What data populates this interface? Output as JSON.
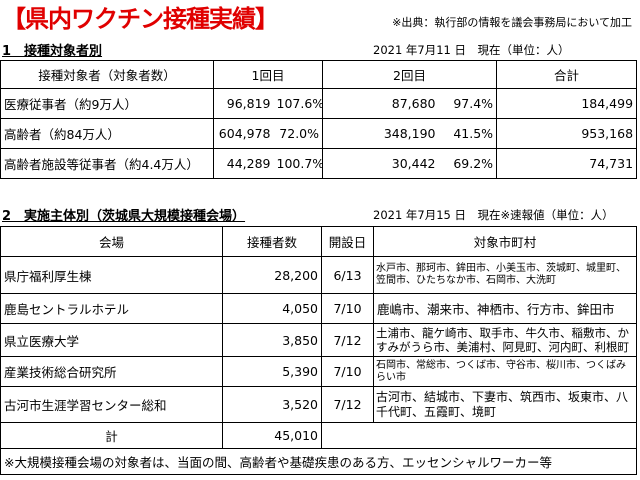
{
  "header": {
    "title": "【県内ワクチン接種実績】",
    "source": "※出典：執行部の情報を議会事務局において加工"
  },
  "section1": {
    "title": "1　接種対象者別",
    "date": "2021 年7月11 日　現在（単位：人）",
    "headers": [
      "接種対象者（対象者数）",
      "1回目",
      "2回目",
      "合計"
    ],
    "rows": [
      {
        "label": "医療従事者（約9万人）",
        "d1": "96,819",
        "p1": "107.6%",
        "d2": "87,680",
        "p2": "97.4%",
        "total": "184,499"
      },
      {
        "label": "高齢者（約84万人）",
        "d1": "604,978",
        "p1": "72.0%",
        "d2": "348,190",
        "p2": "41.5%",
        "total": "953,168"
      },
      {
        "label": "高齢者施設等従事者（約4.4万人）",
        "d1": "44,289",
        "p1": "100.7%",
        "d2": "30,442",
        "p2": "69.2%",
        "total": "74,731"
      }
    ]
  },
  "section2": {
    "title": "2　実施主体別（茨城県大規模接種会場）",
    "date": "2021 年7月15 日　現在※速報値（単位：人）",
    "headers": [
      "会場",
      "接種者数",
      "開設日",
      "対象市町村"
    ],
    "rows": [
      {
        "venue": "県庁福利厚生棟",
        "count": "28,200",
        "date": "6/13",
        "areas": "水戸市、那珂市、鉾田市、小美玉市、茨城町、城里町、笠間市、ひたちなか市、石岡市、大洗町",
        "size": "small"
      },
      {
        "venue": "鹿島セントラルホテル",
        "count": "4,050",
        "date": "7/10",
        "areas": "鹿嶋市、潮来市、神栖市、行方市、鉾田市",
        "size": "large"
      },
      {
        "venue": "県立医療大学",
        "count": "3,850",
        "date": "7/12",
        "areas": "土浦市、龍ケ崎市、取手市、牛久市、稲敷市、かすみがうら市、美浦村、阿見町、河内町、利根町",
        "size": "mid"
      },
      {
        "venue": "産業技術総合研究所",
        "count": "5,390",
        "date": "7/10",
        "areas": "石岡市、常総市、つくば市、守谷市、桜川市、つくばみらい市",
        "size": "small"
      },
      {
        "venue": "古河市生涯学習センター総和",
        "count": "3,520",
        "date": "7/12",
        "areas": "古河市、結城市、下妻市、筑西市、坂東市、八千代町、五霞町、境町",
        "size": "large"
      }
    ],
    "total_label": "計",
    "total_count": "45,010",
    "note": "※大規模接種会場の対象者は、当面の間、高齢者や基礎疾患のある方、エッセンシャルワーカー等"
  }
}
